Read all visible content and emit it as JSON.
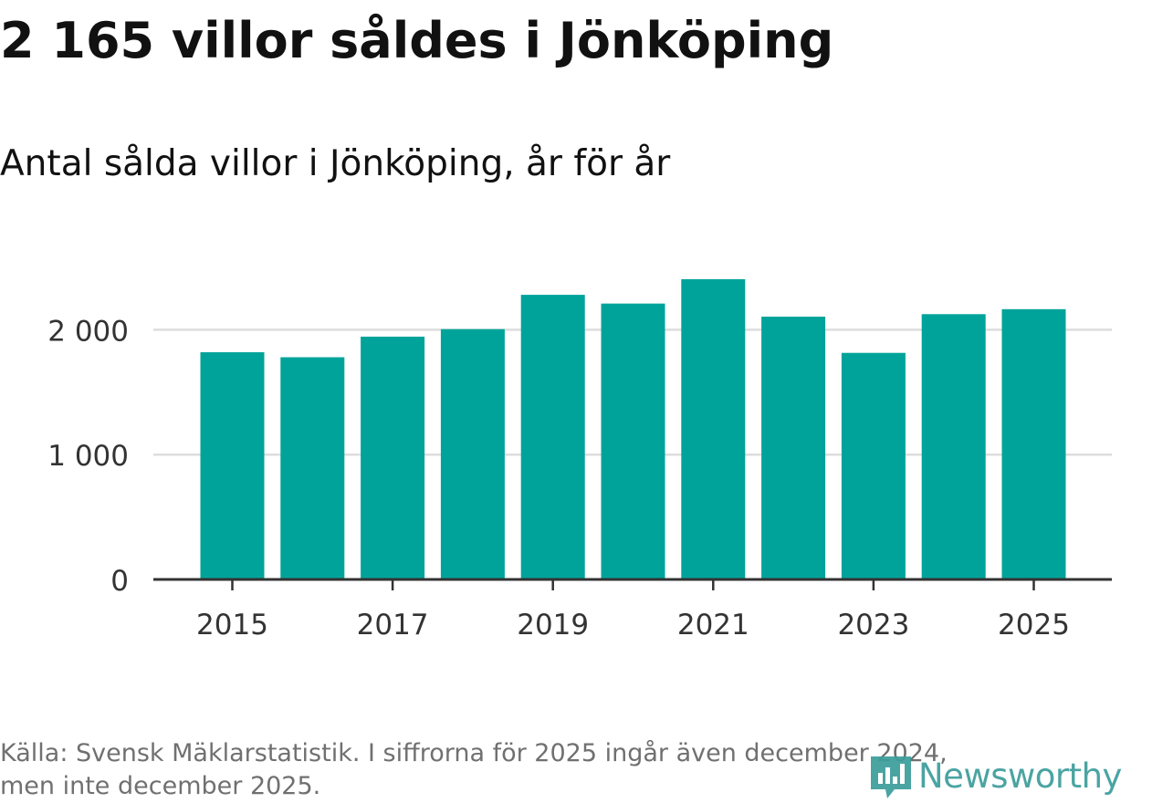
{
  "header": {
    "title": "2 165 villor såldes i Jönköping",
    "subtitle": "Antal sålda villor i Jönköping, år för år"
  },
  "chart_data": {
    "type": "bar",
    "categories": [
      "2015",
      "2016",
      "2017",
      "2018",
      "2019",
      "2020",
      "2021",
      "2022",
      "2023",
      "2024",
      "2025"
    ],
    "values": [
      1820,
      1780,
      1945,
      2005,
      2280,
      2210,
      2405,
      2105,
      1815,
      2125,
      2165
    ],
    "x_tick_labels": [
      "2015",
      "2017",
      "2019",
      "2021",
      "2023",
      "2025"
    ],
    "y_ticks": [
      0,
      1000,
      2000
    ],
    "y_tick_labels": [
      "0",
      "1 000",
      "2 000"
    ],
    "ylim": [
      0,
      2600
    ],
    "grid": true,
    "bar_color": "#00a39a"
  },
  "footer": {
    "source_line1": "Källa: Svensk Mäklarstatistik. I siffrorna för 2025 ingår även december 2024,",
    "source_line2": "men inte december 2025.",
    "logo_text": "Newsworthy",
    "logo_icon": "newsworthy-chart-icon",
    "logo_color": "#3d9e9c"
  }
}
